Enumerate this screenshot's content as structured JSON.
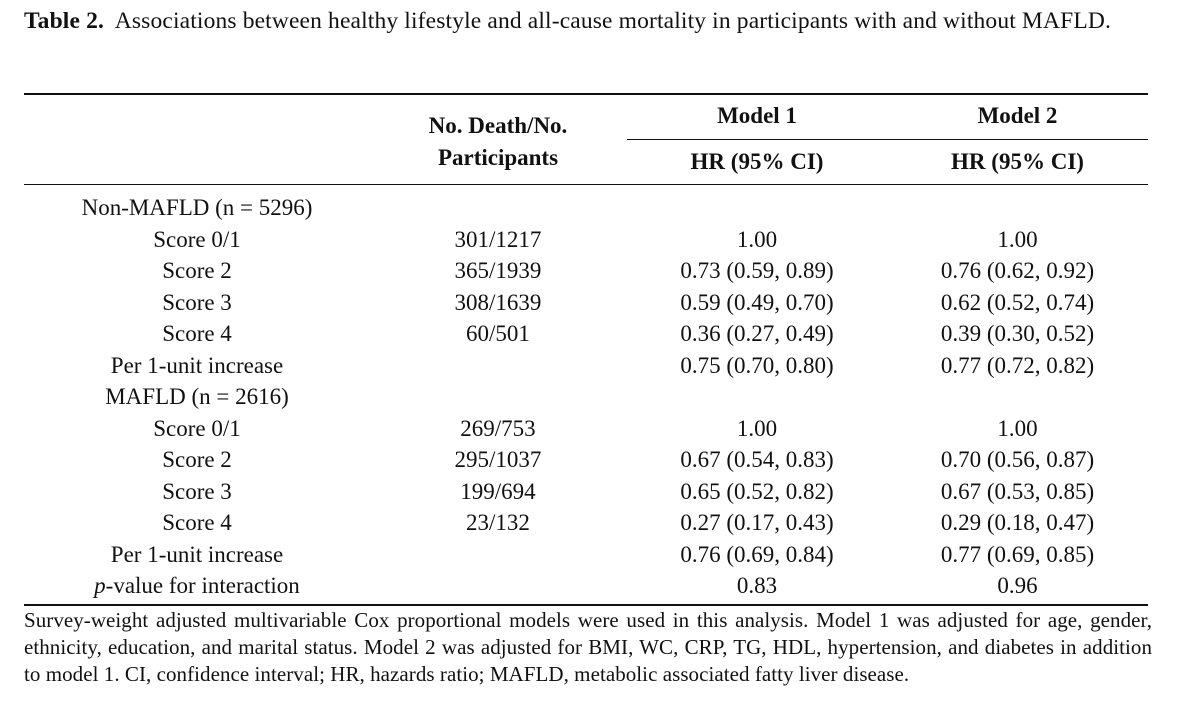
{
  "caption": {
    "label": "Table 2.",
    "text": "Associations between healthy lifestyle and all-cause mortality in participants with and without MAFLD."
  },
  "header": {
    "counts": "No. Death/No. Participants",
    "model1": "Model 1",
    "model2": "Model 2",
    "hr1": "HR (95% CI)",
    "hr2": "HR (95% CI)"
  },
  "rows": [
    {
      "label": "Non-MAFLD (n = 5296)",
      "counts": "",
      "m1": "",
      "m2": ""
    },
    {
      "label": "Score 0/1",
      "counts": "301/1217",
      "m1": "1.00",
      "m2": "1.00"
    },
    {
      "label": "Score 2",
      "counts": "365/1939",
      "m1": "0.73 (0.59, 0.89)",
      "m2": "0.76 (0.62, 0.92)"
    },
    {
      "label": "Score 3",
      "counts": "308/1639",
      "m1": "0.59 (0.49, 0.70)",
      "m2": "0.62 (0.52, 0.74)"
    },
    {
      "label": "Score 4",
      "counts": "60/501",
      "m1": "0.36 (0.27, 0.49)",
      "m2": "0.39 (0.30, 0.52)"
    },
    {
      "label": "Per 1-unit increase",
      "counts": "",
      "m1": "0.75 (0.70, 0.80)",
      "m2": "0.77 (0.72, 0.82)"
    },
    {
      "label": "MAFLD (n = 2616)",
      "counts": "",
      "m1": "",
      "m2": ""
    },
    {
      "label": "Score 0/1",
      "counts": "269/753",
      "m1": "1.00",
      "m2": "1.00"
    },
    {
      "label": "Score 2",
      "counts": "295/1037",
      "m1": "0.67 (0.54, 0.83)",
      "m2": "0.70 (0.56, 0.87)"
    },
    {
      "label": "Score 3",
      "counts": "199/694",
      "m1": "0.65 (0.52, 0.82)",
      "m2": "0.67 (0.53, 0.85)"
    },
    {
      "label": "Score 4",
      "counts": "23/132",
      "m1": "0.27 (0.17, 0.43)",
      "m2": "0.29 (0.18, 0.47)"
    },
    {
      "label": "Per 1-unit increase",
      "counts": "",
      "m1": "0.76 (0.69, 0.84)",
      "m2": "0.77 (0.69, 0.85)"
    }
  ],
  "interaction": {
    "label_italic": "p",
    "label_rest": "-value for interaction",
    "m1": "0.83",
    "m2": "0.96"
  },
  "footnote": "Survey-weight adjusted multivariable Cox proportional models were used in this analysis. Model 1 was adjusted for age, gender, ethnicity, education, and marital status. Model 2 was adjusted for BMI, WC, CRP, TG, HDL, hypertension, and diabetes in addition to model 1. CI, confidence interval; HR, hazards ratio; MAFLD, metabolic associated fatty liver disease."
}
